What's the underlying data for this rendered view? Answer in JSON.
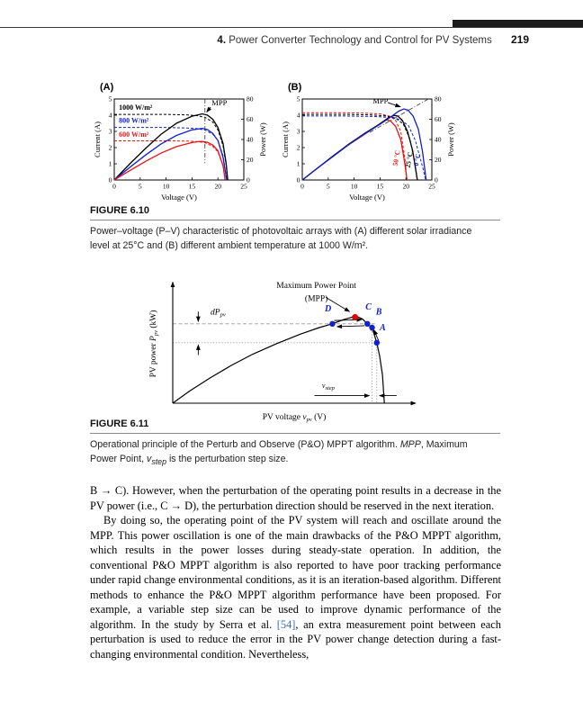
{
  "header": {
    "chapter_prefix": "4.",
    "title": "Power Converter Technology and Control for PV Systems",
    "page_number": "219"
  },
  "figure_6_10": {
    "heading": "FIGURE 6.10",
    "caption": "Power–voltage (P–V) characteristic of photovoltaic arrays with (A) different solar irradiance level at 25°C and (B) different ambient temperature at 1000 W/m²."
  },
  "figure_6_11": {
    "heading": "FIGURE 6.11",
    "caption_seg1": "Operational principle of the Perturb and Observe (P&O) MPPT algorithm. ",
    "caption_seg2": "MPP",
    "caption_seg3": ", Maximum Power Point, ",
    "caption_seg4": "v",
    "caption_seg5": "step",
    "caption_seg6": " is the perturbation step size."
  },
  "body": {
    "para1": "B → C). However, when the perturbation of the operating point results in a decrease in the PV power (i.e., C → D), the perturbation direction should be reserved in the next iteration.",
    "para2_pre": "By doing so, the operating point of the PV system will reach and oscillate around the MPP. This power oscillation is one of the main drawbacks of the P&O MPPT algorithm, which results in the power losses during steady-state operation. In addition, the conventional P&O MPPT algorithm is also reported to have poor tracking performance under rapid change environmental conditions, as it is an iteration-based algorithm. Different methods to enhance the P&O MPPT algorithm performance have been proposed. For example, a variable step size can be used to improve dynamic performance of the algorithm. In the study by Serra et al. ",
    "para2_cite": "[54]",
    "cite_style": "color:#3a6fb5",
    "para2_post": ", an extra measurement point between each perturbation is used to reduce the error in the PV power change detection during a fast-changing environmental condition. Nevertheless,"
  },
  "chart_data": [
    {
      "id": "fig-6-10-A",
      "type": "line",
      "panel_label": "(A)",
      "xlabel": "Voltage (V)",
      "ylabel_left": "Current (A)",
      "ylabel_right": "Power (W)",
      "xlim": [
        0,
        25
      ],
      "ylim_left": [
        0,
        5
      ],
      "ylim_right": [
        0,
        80
      ],
      "x_ticks": [
        0,
        5,
        10,
        15,
        20,
        25
      ],
      "y_ticks_left": [
        0,
        1,
        2,
        3,
        4,
        5
      ],
      "y_ticks_right": [
        0,
        20,
        40,
        60,
        80
      ],
      "mpp_label": "MPP",
      "mpp_text_xy": [
        18.8,
        4.62
      ],
      "mpp_arrow": [
        [
          18.6,
          4.5
        ],
        [
          17.85,
          4.2
        ]
      ],
      "guide_vline": [
        [
          17.5,
          5
        ],
        [
          17.5,
          1.05
        ]
      ],
      "irradiance_labels": [
        "1000 W/m²",
        "800 W/m²",
        "600 W/m²"
      ],
      "irr_xy": [
        [
          0.9,
          4.33
        ],
        [
          0.9,
          3.53
        ],
        [
          0.9,
          2.68
        ]
      ],
      "series": [
        {
          "name": "I-V 1000 W/m²",
          "axis": "left",
          "color": "#000000",
          "style": "dashed",
          "points": [
            [
              0,
              4.05
            ],
            [
              10,
              4.05
            ],
            [
              14,
              4.02
            ],
            [
              16,
              3.97
            ],
            [
              17.5,
              3.87
            ],
            [
              19,
              3.58
            ],
            [
              20,
              3.1
            ],
            [
              21,
              2.1
            ],
            [
              21.6,
              0.9
            ],
            [
              21.9,
              0
            ]
          ]
        },
        {
          "name": "I-V 800 W/m²",
          "axis": "left",
          "color": "#1122cc",
          "style": "dashed",
          "points": [
            [
              0,
              3.24
            ],
            [
              10,
              3.24
            ],
            [
              14,
              3.21
            ],
            [
              16,
              3.17
            ],
            [
              17.5,
              3.08
            ],
            [
              19,
              2.83
            ],
            [
              20,
              2.45
            ],
            [
              21,
              1.5
            ],
            [
              21.5,
              0.4
            ],
            [
              21.7,
              0
            ]
          ]
        },
        {
          "name": "I-V 600 W/m²",
          "axis": "left",
          "color": "#ee1111",
          "style": "dashed",
          "points": [
            [
              0,
              2.42
            ],
            [
              10,
              2.42
            ],
            [
              14,
              2.4
            ],
            [
              16,
              2.37
            ],
            [
              17.5,
              2.3
            ],
            [
              19,
              2.08
            ],
            [
              20,
              1.75
            ],
            [
              21,
              0.85
            ],
            [
              21.4,
              0
            ]
          ]
        },
        {
          "name": "P-V 1000 W/m²",
          "axis": "right",
          "color": "#000000",
          "style": "solid",
          "points": [
            [
              0,
              0
            ],
            [
              3,
              16
            ],
            [
              6,
              31
            ],
            [
              9,
              45
            ],
            [
              12,
              56
            ],
            [
              15,
              63
            ],
            [
              17,
              65.3
            ],
            [
              18,
              64
            ],
            [
              19,
              60
            ],
            [
              20,
              52
            ],
            [
              21,
              36
            ],
            [
              21.6,
              16
            ],
            [
              21.9,
              0
            ]
          ]
        },
        {
          "name": "P-V 800 W/m²",
          "axis": "right",
          "color": "#1122cc",
          "style": "solid",
          "points": [
            [
              0,
              0
            ],
            [
              3,
              12.5
            ],
            [
              6,
              24.5
            ],
            [
              9,
              35.5
            ],
            [
              12,
              44
            ],
            [
              15,
              49.5
            ],
            [
              17,
              51
            ],
            [
              18,
              49.8
            ],
            [
              19,
              46
            ],
            [
              20,
              39
            ],
            [
              21,
              22
            ],
            [
              21.7,
              0
            ]
          ]
        },
        {
          "name": "P-V 600 W/m²",
          "axis": "right",
          "color": "#ee1111",
          "style": "solid",
          "points": [
            [
              0,
              0
            ],
            [
              3,
              9.3
            ],
            [
              6,
              18.3
            ],
            [
              9,
              26.5
            ],
            [
              12,
              33
            ],
            [
              15,
              37
            ],
            [
              16.8,
              38.2
            ],
            [
              18,
              37.2
            ],
            [
              19,
              34.5
            ],
            [
              20,
              29
            ],
            [
              21,
              14
            ],
            [
              21.4,
              0
            ]
          ]
        }
      ]
    },
    {
      "id": "fig-6-10-B",
      "type": "line",
      "panel_label": "(B)",
      "xlabel": "Voltage (V)",
      "ylabel_left": "Current (A)",
      "ylabel_right": "Power (W)",
      "xlim": [
        0,
        25
      ],
      "ylim_left": [
        0,
        5
      ],
      "ylim_right": [
        0,
        80
      ],
      "x_ticks": [
        0,
        5,
        10,
        15,
        20,
        25
      ],
      "y_ticks_left": [
        0,
        1,
        2,
        3,
        4,
        5
      ],
      "y_ticks_right": [
        0,
        20,
        40,
        60,
        80
      ],
      "mpp_label": "MPP",
      "mpp_text_xy": [
        13.6,
        4.72
      ],
      "mpp_arrow": [
        [
          16.5,
          4.78
        ],
        [
          18.9,
          4.52
        ]
      ],
      "guide_line": [
        [
          13,
          47
        ],
        [
          24.5,
          80.5
        ]
      ],
      "temp_labels": [
        "50 °C",
        "25 °C",
        "0 °C"
      ],
      "series": [
        {
          "name": "I-V 50 °C",
          "axis": "left",
          "color": "#ee1111",
          "style": "dashed",
          "points": [
            [
              0,
              4.15
            ],
            [
              8,
              4.15
            ],
            [
              12,
              4.13
            ],
            [
              15,
              4.08
            ],
            [
              17,
              3.93
            ],
            [
              18,
              3.68
            ],
            [
              19,
              3.0
            ],
            [
              19.8,
              1.3
            ],
            [
              20.2,
              0
            ]
          ]
        },
        {
          "name": "I-V 25 °C",
          "axis": "left",
          "color": "#000000",
          "style": "dashed",
          "points": [
            [
              0,
              4.05
            ],
            [
              8,
              4.05
            ],
            [
              13,
              4.02
            ],
            [
              16,
              3.96
            ],
            [
              18,
              3.82
            ],
            [
              19.5,
              3.45
            ],
            [
              20.8,
              2.5
            ],
            [
              21.8,
              0.9
            ],
            [
              22.2,
              0
            ]
          ]
        },
        {
          "name": "I-V 0 °C",
          "axis": "left",
          "color": "#1122cc",
          "style": "dashed",
          "points": [
            [
              0,
              3.95
            ],
            [
              8,
              3.95
            ],
            [
              14,
              3.92
            ],
            [
              17,
              3.86
            ],
            [
              19,
              3.72
            ],
            [
              20.5,
              3.35
            ],
            [
              21.8,
              2.45
            ],
            [
              23.3,
              0.7
            ],
            [
              23.8,
              0
            ]
          ]
        },
        {
          "name": "P-V 50 °C",
          "axis": "right",
          "color": "#ee1111",
          "style": "solid",
          "points": [
            [
              0,
              0
            ],
            [
              3,
              12
            ],
            [
              6,
              24
            ],
            [
              9,
              35
            ],
            [
              12,
              45
            ],
            [
              14,
              52
            ],
            [
              15.5,
              57.5
            ],
            [
              16.3,
              59.3
            ],
            [
              17,
              58.5
            ],
            [
              18,
              53
            ],
            [
              19,
              40
            ],
            [
              19.7,
              19
            ],
            [
              20.2,
              0
            ]
          ]
        },
        {
          "name": "P-V 25 °C",
          "axis": "right",
          "color": "#000000",
          "style": "solid",
          "points": [
            [
              0,
              0
            ],
            [
              3,
              12
            ],
            [
              6,
              24
            ],
            [
              9,
              35.5
            ],
            [
              12,
              46
            ],
            [
              15,
              55.5
            ],
            [
              16.5,
              61
            ],
            [
              17.7,
              63.8
            ],
            [
              18.4,
              63.2
            ],
            [
              19.3,
              59
            ],
            [
              20.3,
              48
            ],
            [
              21.3,
              29
            ],
            [
              22.2,
              0
            ]
          ]
        },
        {
          "name": "P-V 0 °C",
          "axis": "right",
          "color": "#1122cc",
          "style": "solid",
          "points": [
            [
              0,
              0
            ],
            [
              3,
              12
            ],
            [
              6,
              23.5
            ],
            [
              9,
              35
            ],
            [
              12,
              45.5
            ],
            [
              15,
              55
            ],
            [
              17,
              62
            ],
            [
              18.6,
              68
            ],
            [
              19.6,
              70.2
            ],
            [
              20.4,
              69
            ],
            [
              21.4,
              63
            ],
            [
              22.4,
              50
            ],
            [
              23.2,
              28
            ],
            [
              23.9,
              0
            ]
          ]
        }
      ]
    },
    {
      "id": "fig-6-11",
      "type": "line",
      "xlabel_parts": {
        "pre": "PV voltage ",
        "sym": "v",
        "sub": "pv",
        "post": " (V)"
      },
      "ylabel_parts": {
        "pre": "PV power ",
        "sym": "P",
        "sub": "pv",
        "post": " (kW)"
      },
      "mpp_label_line1": "Maximum Power Point",
      "mpp_label_line2": "(MPP)",
      "dp_label": {
        "sym": "dP",
        "sub": "pv"
      },
      "dp_label_xy": [
        40,
        94
      ],
      "vstep_label": {
        "sym": "v",
        "sub": "step"
      },
      "vstep_label_xy": [
        158,
        16
      ],
      "mpp_text_xy1": [
        152,
        122
      ],
      "mpp_text_xy2": [
        152,
        108
      ],
      "curve": [
        [
          0,
          0
        ],
        [
          18,
          13
        ],
        [
          40,
          27
        ],
        [
          62,
          40
        ],
        [
          85,
          52
        ],
        [
          110,
          63
        ],
        [
          135,
          73
        ],
        [
          155,
          80
        ],
        [
          169,
          84
        ],
        [
          181,
          88.5
        ],
        [
          190,
          91
        ],
        [
          196,
          91.3
        ],
        [
          201,
          89
        ],
        [
          206,
          84
        ],
        [
          211,
          80
        ],
        [
          216,
          64
        ],
        [
          219,
          50
        ],
        [
          222,
          30
        ],
        [
          224,
          0
        ]
      ],
      "axis_x": [
        [
          0,
          0
        ],
        [
          257,
          0
        ]
      ],
      "axis_y": [
        [
          0,
          0
        ],
        [
          0,
          128
        ]
      ],
      "grid_upper": [
        [
          0,
          84
        ],
        [
          214,
          84
        ]
      ],
      "grid_lower": [
        [
          0,
          64
        ],
        [
          221,
          64
        ]
      ],
      "vline_b": [
        [
          211,
          79
        ],
        [
          211,
          0
        ]
      ],
      "vline_a": [
        [
          216,
          63
        ],
        [
          216,
          0
        ]
      ],
      "points": [
        {
          "label": "D",
          "color": "#1122cc",
          "xy": [
            169,
            84
          ],
          "label_xy": [
            161,
            97
          ]
        },
        {
          "label": "",
          "color": "#dd0000",
          "xy": [
            193,
            91
          ],
          "label_xy": [
            193,
            91
          ]
        },
        {
          "label": "C",
          "color": "#1122cc",
          "xy": [
            206,
            84
          ],
          "label_xy": [
            204,
            99
          ]
        },
        {
          "label": "B",
          "color": "#1122cc",
          "xy": [
            211,
            80
          ],
          "label_xy": [
            215,
            94
          ]
        },
        {
          "label": "A",
          "color": "#1122cc",
          "xy": [
            216,
            64
          ],
          "label_xy": [
            219,
            77
          ]
        }
      ],
      "arrows": [
        [
          [
            162,
            112
          ],
          [
            187,
            97
          ]
        ],
        [
          [
            171,
            87.5
          ],
          [
            200,
            88.5
          ]
        ],
        [
          [
            203,
            82
          ],
          [
            174,
            81
          ]
        ],
        [
          [
            213,
            75.5
          ],
          [
            208.5,
            82
          ]
        ],
        [
          [
            218,
            66
          ],
          [
            213,
            77.5
          ]
        ],
        [
          [
            150,
            8
          ],
          [
            208,
            8
          ]
        ],
        [
          [
            237,
            8
          ],
          [
            219,
            8
          ]
        ],
        [
          [
            27,
            97
          ],
          [
            27,
            86.5
          ]
        ],
        [
          [
            27,
            51
          ],
          [
            27,
            61.5
          ]
        ]
      ]
    }
  ]
}
